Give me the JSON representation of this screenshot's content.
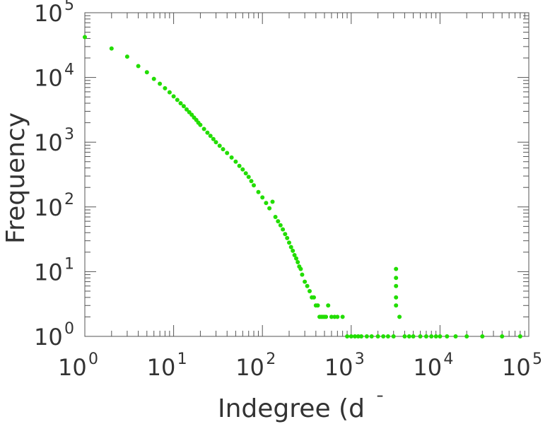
{
  "chart_data": {
    "type": "scatter",
    "title": "",
    "xlabel": "Indegree (d",
    "xlabel_suffix": "¯",
    "ylabel": "Frequency",
    "x_scale": "log",
    "y_scale": "log",
    "xlim": [
      1,
      100000
    ],
    "ylim": [
      1,
      100000
    ],
    "grid": false,
    "legend": "none",
    "marker_color": "#22dd00",
    "x_tick_labels": [
      {
        "value": 1,
        "base": "10",
        "exp": "0"
      },
      {
        "value": 10,
        "base": "10",
        "exp": "1"
      },
      {
        "value": 100,
        "base": "10",
        "exp": "2"
      },
      {
        "value": 1000,
        "base": "10",
        "exp": "3"
      },
      {
        "value": 10000,
        "base": "10",
        "exp": "4"
      },
      {
        "value": 100000,
        "base": "10",
        "exp": "5"
      }
    ],
    "y_tick_labels": [
      {
        "value": 1,
        "base": "10",
        "exp": "0"
      },
      {
        "value": 10,
        "base": "10",
        "exp": "1"
      },
      {
        "value": 100,
        "base": "10",
        "exp": "2"
      },
      {
        "value": 1000,
        "base": "10",
        "exp": "3"
      },
      {
        "value": 10000,
        "base": "10",
        "exp": "4"
      },
      {
        "value": 100000,
        "base": "10",
        "exp": "5"
      }
    ],
    "series": [
      {
        "points": [
          [
            1,
            42000
          ],
          [
            2,
            28000
          ],
          [
            3,
            21000
          ],
          [
            4,
            15000
          ],
          [
            5,
            12000
          ],
          [
            6,
            9500
          ],
          [
            7,
            8000
          ],
          [
            8,
            6800
          ],
          [
            9,
            5900
          ],
          [
            10,
            5100
          ],
          [
            11,
            4500
          ],
          [
            12,
            4000
          ],
          [
            13,
            3600
          ],
          [
            14,
            3200
          ],
          [
            15,
            2900
          ],
          [
            16,
            2650
          ],
          [
            17,
            2400
          ],
          [
            18,
            2200
          ],
          [
            19,
            2000
          ],
          [
            20,
            1850
          ],
          [
            22,
            1600
          ],
          [
            24,
            1400
          ],
          [
            26,
            1250
          ],
          [
            28,
            1120
          ],
          [
            30,
            1000
          ],
          [
            33,
            880
          ],
          [
            36,
            780
          ],
          [
            40,
            680
          ],
          [
            45,
            580
          ],
          [
            50,
            500
          ],
          [
            55,
            430
          ],
          [
            60,
            380
          ],
          [
            65,
            330
          ],
          [
            70,
            290
          ],
          [
            75,
            250
          ],
          [
            80,
            215
          ],
          [
            90,
            170
          ],
          [
            100,
            140
          ],
          [
            110,
            115
          ],
          [
            120,
            95
          ],
          [
            130,
            120
          ],
          [
            140,
            70
          ],
          [
            150,
            60
          ],
          [
            160,
            52
          ],
          [
            170,
            45
          ],
          [
            180,
            38
          ],
          [
            190,
            33
          ],
          [
            200,
            28
          ],
          [
            210,
            24
          ],
          [
            220,
            21
          ],
          [
            230,
            18
          ],
          [
            240,
            16
          ],
          [
            250,
            14
          ],
          [
            260,
            12
          ],
          [
            270,
            11
          ],
          [
            280,
            9
          ],
          [
            300,
            7
          ],
          [
            320,
            6
          ],
          [
            340,
            5
          ],
          [
            360,
            4
          ],
          [
            380,
            4
          ],
          [
            400,
            3
          ],
          [
            420,
            3
          ],
          [
            440,
            2
          ],
          [
            460,
            2
          ],
          [
            480,
            2
          ],
          [
            500,
            2
          ],
          [
            520,
            2
          ],
          [
            550,
            3
          ],
          [
            600,
            2
          ],
          [
            650,
            2
          ],
          [
            700,
            2
          ],
          [
            800,
            2
          ],
          [
            900,
            1
          ],
          [
            1000,
            1
          ],
          [
            1100,
            1
          ],
          [
            1200,
            1
          ],
          [
            1300,
            1
          ],
          [
            1500,
            1
          ],
          [
            1700,
            1
          ],
          [
            2000,
            1
          ],
          [
            2300,
            1
          ],
          [
            2600,
            1
          ],
          [
            3000,
            1
          ],
          [
            3200,
            11
          ],
          [
            3200,
            8
          ],
          [
            3200,
            6
          ],
          [
            3200,
            4
          ],
          [
            3200,
            3
          ],
          [
            3500,
            2
          ],
          [
            4000,
            1
          ],
          [
            4500,
            1
          ],
          [
            5000,
            1
          ],
          [
            6000,
            1
          ],
          [
            7000,
            1
          ],
          [
            8000,
            1
          ],
          [
            9000,
            1
          ],
          [
            10000,
            1
          ],
          [
            12000,
            1
          ],
          [
            15000,
            1
          ],
          [
            20000,
            1
          ],
          [
            30000,
            1
          ],
          [
            50000,
            1
          ],
          [
            80000,
            1
          ]
        ]
      }
    ]
  }
}
